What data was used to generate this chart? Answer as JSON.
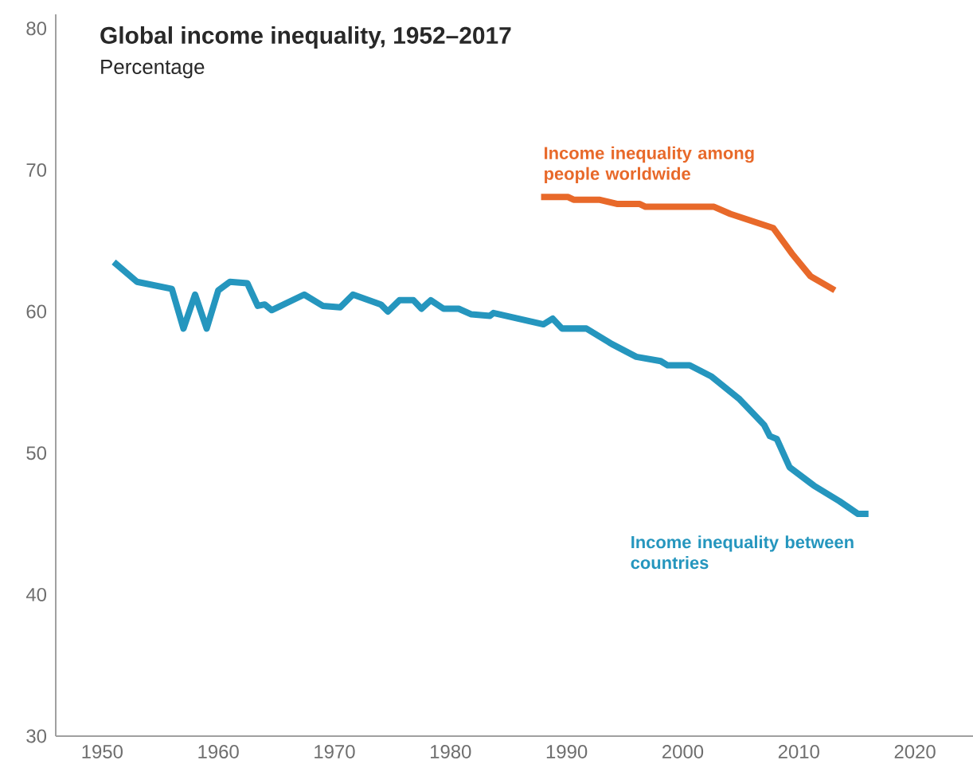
{
  "chart_data": {
    "type": "line",
    "title": "Global income inequality, 1952–2017",
    "subtitle": "Percentage",
    "xlim": [
      1946,
      2025
    ],
    "ylim": [
      30,
      81
    ],
    "xticks": [
      1950,
      1960,
      1970,
      1980,
      1990,
      2000,
      2010,
      2020
    ],
    "yticks": [
      30,
      40,
      50,
      60,
      70,
      80
    ],
    "series": [
      {
        "name": "Income inequality between countries",
        "color": "#2596be",
        "x": [
          1951,
          1953,
          1956,
          1957,
          1958,
          1959,
          1960,
          1961,
          1962.5,
          1963.4,
          1964,
          1964.6,
          1967.4,
          1969,
          1970.5,
          1971.6,
          1974,
          1974.6,
          1975.6,
          1976.8,
          1977.5,
          1978.3,
          1979.4,
          1980.7,
          1981.8,
          1983.4,
          1983.7,
          1988,
          1988.8,
          1989.6,
          1991.7,
          1993.9,
          1996,
          1998.1,
          1998.7,
          2000.6,
          2002.5,
          2004.9,
          2007,
          2007.5,
          2008.1,
          2009.2,
          2011.3,
          2013.5,
          2015.1,
          2016
        ],
        "values": [
          63.5,
          62.1,
          61.6,
          58.8,
          61.2,
          58.8,
          61.5,
          62.1,
          62.0,
          60.4,
          60.5,
          60.1,
          61.2,
          60.4,
          60.3,
          61.2,
          60.5,
          60.0,
          60.8,
          60.8,
          60.2,
          60.8,
          60.2,
          60.2,
          59.8,
          59.7,
          59.9,
          59.1,
          59.5,
          58.8,
          58.8,
          57.7,
          56.8,
          56.5,
          56.2,
          56.2,
          55.4,
          53.8,
          52.0,
          51.2,
          51.0,
          49.0,
          47.7,
          46.6,
          45.7,
          45.7
        ]
      },
      {
        "name": "Income inequality among people worldwide",
        "color": "#e8692a",
        "x": [
          1987.8,
          1990.1,
          1990.6,
          1992.8,
          1994.4,
          1996.3,
          1996.8,
          2002.7,
          2004.1,
          2007.8,
          2009.4,
          2011,
          2013.1
        ],
        "values": [
          68.1,
          68.1,
          67.9,
          67.9,
          67.6,
          67.6,
          67.4,
          67.4,
          66.9,
          65.9,
          64.1,
          62.5,
          61.5
        ]
      }
    ]
  }
}
